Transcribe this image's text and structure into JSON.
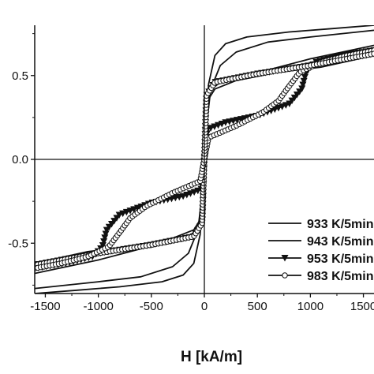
{
  "chart_data": {
    "type": "line",
    "title": "",
    "xlabel": "H [kA/m]",
    "ylabel": "",
    "xlim": [
      -1600,
      1600
    ],
    "ylim": [
      -0.8,
      0.8
    ],
    "grid": false,
    "legend_position": "bottom-right",
    "x_ticks": [
      {
        "value": -1500,
        "label": "-1500"
      },
      {
        "value": -1000,
        "label": "-1000"
      },
      {
        "value": -500,
        "label": "-500"
      },
      {
        "value": 0,
        "label": "0"
      },
      {
        "value": 500,
        "label": "500"
      },
      {
        "value": 1000,
        "label": "1000"
      },
      {
        "value": 1500,
        "label": "1500"
      }
    ],
    "y_ticks": [
      {
        "value": 0.5,
        "label": "0.5"
      },
      {
        "value": 0.0,
        "label": "0.0"
      },
      {
        "value": -0.5,
        "label": "-0.5"
      }
    ],
    "series": [
      {
        "name": "933 K/5min",
        "marker": "none",
        "upper": [
          [
            -1600,
            -0.8
          ],
          [
            -1200,
            -0.78
          ],
          [
            -800,
            -0.76
          ],
          [
            -400,
            -0.73
          ],
          [
            -200,
            -0.69
          ],
          [
            -100,
            -0.62
          ],
          [
            -40,
            -0.45
          ],
          [
            0,
            -0.1
          ],
          [
            20,
            0.2
          ],
          [
            60,
            0.42
          ],
          [
            150,
            0.56
          ],
          [
            300,
            0.64
          ],
          [
            600,
            0.7
          ],
          [
            1000,
            0.73
          ],
          [
            1600,
            0.77
          ]
        ],
        "lower": [
          [
            -1600,
            -0.77
          ],
          [
            -1000,
            -0.73
          ],
          [
            -600,
            -0.7
          ],
          [
            -300,
            -0.64
          ],
          [
            -150,
            -0.56
          ],
          [
            -60,
            -0.42
          ],
          [
            -20,
            -0.2
          ],
          [
            0,
            0.1
          ],
          [
            40,
            0.45
          ],
          [
            100,
            0.62
          ],
          [
            200,
            0.69
          ],
          [
            400,
            0.73
          ],
          [
            800,
            0.76
          ],
          [
            1200,
            0.78
          ],
          [
            1600,
            0.8
          ]
        ]
      },
      {
        "name": "943 K/5min",
        "marker": "none",
        "upper": [
          [
            -1600,
            -0.62
          ],
          [
            -1100,
            -0.55
          ],
          [
            -700,
            -0.52
          ],
          [
            -300,
            -0.47
          ],
          [
            -100,
            -0.42
          ],
          [
            -30,
            -0.35
          ],
          [
            0,
            0.0
          ],
          [
            30,
            0.4
          ],
          [
            150,
            0.46
          ],
          [
            400,
            0.5
          ],
          [
            700,
            0.55
          ],
          [
            1000,
            0.6
          ],
          [
            1300,
            0.64
          ],
          [
            1600,
            0.68
          ]
        ],
        "lower": [
          [
            -1600,
            -0.68
          ],
          [
            -1300,
            -0.64
          ],
          [
            -1000,
            -0.6
          ],
          [
            -700,
            -0.55
          ],
          [
            -400,
            -0.5
          ],
          [
            -150,
            -0.46
          ],
          [
            -30,
            -0.4
          ],
          [
            0,
            0.0
          ],
          [
            30,
            0.35
          ],
          [
            100,
            0.42
          ],
          [
            300,
            0.47
          ],
          [
            700,
            0.52
          ],
          [
            1100,
            0.55
          ],
          [
            1600,
            0.62
          ]
        ]
      },
      {
        "name": "953 K/5min",
        "marker": "triangle-down",
        "upper": [
          [
            -1600,
            -0.63
          ],
          [
            -1000,
            -0.56
          ],
          [
            -500,
            -0.51
          ],
          [
            -100,
            -0.46
          ],
          [
            -20,
            -0.38
          ],
          [
            0,
            0.0
          ],
          [
            30,
            0.18
          ],
          [
            200,
            0.22
          ],
          [
            500,
            0.26
          ],
          [
            800,
            0.33
          ],
          [
            920,
            0.42
          ],
          [
            960,
            0.52
          ],
          [
            1050,
            0.58
          ],
          [
            1300,
            0.62
          ],
          [
            1600,
            0.65
          ]
        ],
        "lower": [
          [
            -1600,
            -0.65
          ],
          [
            -1300,
            -0.62
          ],
          [
            -1050,
            -0.58
          ],
          [
            -960,
            -0.52
          ],
          [
            -920,
            -0.42
          ],
          [
            -800,
            -0.33
          ],
          [
            -500,
            -0.26
          ],
          [
            -200,
            -0.22
          ],
          [
            -30,
            -0.18
          ],
          [
            0,
            0.0
          ],
          [
            20,
            0.38
          ],
          [
            100,
            0.46
          ],
          [
            500,
            0.51
          ],
          [
            1000,
            0.56
          ],
          [
            1600,
            0.63
          ]
        ]
      },
      {
        "name": "983 K/5min",
        "marker": "circle-open",
        "upper": [
          [
            -1600,
            -0.63
          ],
          [
            -1000,
            -0.56
          ],
          [
            -500,
            -0.51
          ],
          [
            -100,
            -0.46
          ],
          [
            -20,
            -0.38
          ],
          [
            0,
            0.0
          ],
          [
            40,
            0.13
          ],
          [
            300,
            0.2
          ],
          [
            550,
            0.28
          ],
          [
            700,
            0.35
          ],
          [
            780,
            0.42
          ],
          [
            900,
            0.52
          ],
          [
            1100,
            0.58
          ],
          [
            1350,
            0.62
          ],
          [
            1600,
            0.65
          ]
        ],
        "lower": [
          [
            -1600,
            -0.65
          ],
          [
            -1350,
            -0.62
          ],
          [
            -1100,
            -0.58
          ],
          [
            -900,
            -0.52
          ],
          [
            -780,
            -0.42
          ],
          [
            -700,
            -0.35
          ],
          [
            -550,
            -0.28
          ],
          [
            -300,
            -0.2
          ],
          [
            -40,
            -0.13
          ],
          [
            0,
            0.0
          ],
          [
            20,
            0.38
          ],
          [
            100,
            0.46
          ],
          [
            500,
            0.51
          ],
          [
            1000,
            0.56
          ],
          [
            1600,
            0.63
          ]
        ]
      }
    ]
  }
}
